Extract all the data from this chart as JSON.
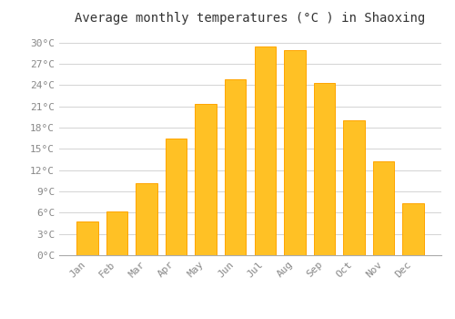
{
  "title": "Average monthly temperatures (°C ) in Shaoxing",
  "months": [
    "Jan",
    "Feb",
    "Mar",
    "Apr",
    "May",
    "Jun",
    "Jul",
    "Aug",
    "Sep",
    "Oct",
    "Nov",
    "Dec"
  ],
  "temperatures": [
    4.8,
    6.2,
    10.2,
    16.4,
    21.3,
    24.8,
    29.4,
    28.9,
    24.3,
    19.0,
    13.2,
    7.3
  ],
  "bar_color": "#FFC125",
  "bar_edge_color": "#FFA500",
  "background_color": "#FFFFFF",
  "plot_bg_color": "#FFFFFF",
  "grid_color": "#CCCCCC",
  "yticks": [
    0,
    3,
    6,
    9,
    12,
    15,
    18,
    21,
    24,
    27,
    30
  ],
  "ytick_labels": [
    "0°C",
    "3°C",
    "6°C",
    "9°C",
    "12°C",
    "15°C",
    "18°C",
    "21°C",
    "24°C",
    "27°C",
    "30°C"
  ],
  "ylim": [
    0,
    31.5
  ],
  "title_fontsize": 10,
  "tick_fontsize": 8,
  "tick_color": "#888888",
  "bar_width": 0.72
}
